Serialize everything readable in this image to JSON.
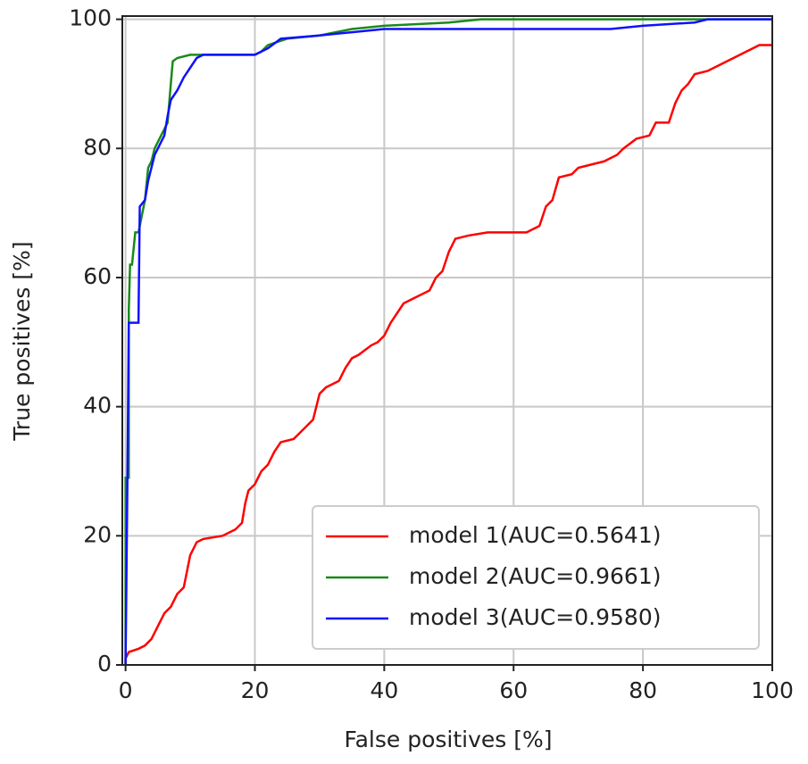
{
  "chart_data": {
    "type": "line",
    "xlabel": "False positives [%]",
    "ylabel": "True positives [%]",
    "xlim": [
      -0.5,
      100
    ],
    "ylim": [
      0,
      100.5
    ],
    "xticks": [
      0,
      20,
      40,
      60,
      80,
      100
    ],
    "yticks": [
      0,
      20,
      40,
      60,
      80,
      100
    ],
    "grid": true,
    "legend": "lower right",
    "series": [
      {
        "name": "model 1(AUC=0.5641)",
        "color": "#ff0000",
        "x": [
          0,
          0,
          0.5,
          2,
          3,
          4,
          5,
          6,
          7,
          8,
          9,
          10,
          10.5,
          11,
          12,
          15,
          17,
          18,
          18.5,
          19,
          20,
          21,
          22,
          23,
          24,
          26,
          27,
          29,
          30,
          31,
          32,
          33,
          34,
          35,
          36,
          38,
          39,
          40,
          41,
          42,
          43,
          45,
          47,
          48,
          49,
          50,
          51,
          53,
          56,
          62,
          64,
          65,
          66,
          67,
          69,
          70,
          72,
          74,
          76,
          77,
          79,
          81,
          82,
          84,
          85,
          86,
          87,
          88,
          90,
          92,
          94,
          96,
          98,
          100
        ],
        "values": [
          0,
          1,
          2,
          2.5,
          3,
          4,
          6,
          8,
          9,
          11,
          12,
          17,
          18,
          19,
          19.5,
          20,
          21,
          22,
          25,
          27,
          28,
          30,
          31,
          33,
          34.5,
          35,
          36,
          38,
          42,
          43,
          43.5,
          44,
          46,
          47.5,
          48,
          49.5,
          50,
          51,
          53,
          54.5,
          56,
          57,
          58,
          60,
          61,
          64,
          66,
          66.5,
          67,
          67,
          68,
          71,
          72,
          75.5,
          76,
          77,
          77.5,
          78,
          79,
          80,
          81.5,
          82,
          84,
          84,
          87,
          89,
          90,
          91.5,
          92,
          93,
          94,
          95,
          96,
          96
        ]
      },
      {
        "name": "model 2(AUC=0.9661)",
        "color": "#1a8a1a",
        "x": [
          0,
          0,
          0.5,
          0.5,
          0.7,
          1,
          1.5,
          2,
          3,
          3.5,
          4,
          4.5,
          5,
          5.5,
          6,
          6.5,
          7,
          7.3,
          8,
          10,
          20,
          21,
          22,
          25,
          30,
          35,
          40,
          50,
          55,
          100
        ],
        "values": [
          0,
          29,
          29,
          55,
          62,
          62,
          67,
          67,
          72,
          77,
          78,
          80,
          81,
          82,
          83,
          84,
          90,
          93.5,
          94,
          94.5,
          94.5,
          95,
          96,
          97,
          97.5,
          98.5,
          99,
          99.5,
          100,
          100
        ]
      },
      {
        "name": "model 3(AUC=0.9580)",
        "color": "#1010ff",
        "x": [
          0,
          0.3,
          0.5,
          2,
          2.2,
          3,
          3.5,
          4,
          4.5,
          5,
          5.5,
          6,
          6.5,
          7,
          8,
          9,
          10,
          11,
          12,
          20,
          22,
          24,
          30,
          35,
          40,
          75,
          80,
          88,
          90,
          100
        ],
        "values": [
          0,
          30,
          53,
          53,
          71,
          72,
          75,
          77,
          79,
          80,
          81,
          82,
          85,
          87.5,
          89,
          91,
          92.5,
          94,
          94.5,
          94.5,
          95.5,
          97,
          97.5,
          98,
          98.5,
          98.5,
          99,
          99.5,
          100,
          100
        ]
      }
    ]
  }
}
